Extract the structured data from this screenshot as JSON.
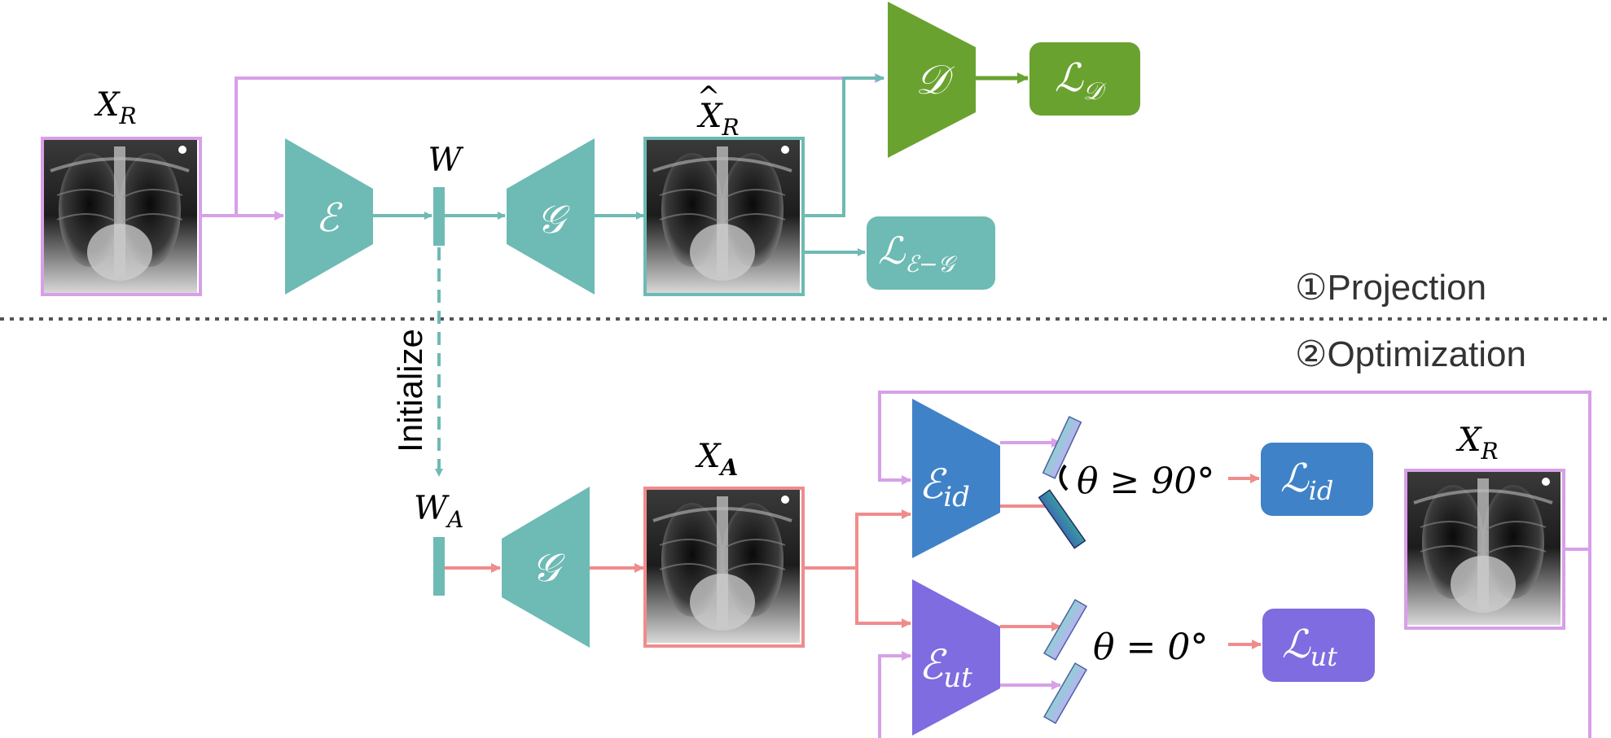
{
  "stage1": {
    "circle": "①",
    "label": "Projection"
  },
  "stage2": {
    "circle": "②",
    "label": "Optimization"
  },
  "initialize_label": "Initialize",
  "symbols": {
    "x_r_base": "X",
    "x_r_sub": "R",
    "x_r_hat_base": "X",
    "x_r_hat_sub": "R",
    "x_r_hat_accent": "^",
    "w": "W",
    "w_a_base": "W",
    "w_a_sub": "A",
    "x_a_base": "X",
    "x_a_sub": "A",
    "x_r2_base": "X",
    "x_r2_sub": "R"
  },
  "blocks": {
    "encoder": "ℰ",
    "generator_top": "𝒢",
    "generator_bottom": "𝒢",
    "discriminator": "𝒟",
    "encoder_id_base": "ℰ",
    "encoder_id_sub": "id",
    "encoder_ut_base": "ℰ",
    "encoder_ut_sub": "ut"
  },
  "losses": {
    "loss_d_base": "ℒ",
    "loss_d_sub": "𝒟",
    "loss_eg_base": "ℒ",
    "loss_eg_sub": "ℰ−𝒢",
    "loss_id_base": "ℒ",
    "loss_id_sub": "id",
    "loss_ut_base": "ℒ",
    "loss_ut_sub": "ut"
  },
  "angles": {
    "id_condition": "θ ≥ 90°",
    "ut_condition": "θ = 0°"
  },
  "colors": {
    "teal": "#6ebab4",
    "teal_dark": "#5aa9a3",
    "green": "#6aa230",
    "blue": "#3f82c8",
    "purple": "#7e6ce0",
    "pink_line": "#d7a0e8",
    "salmon": "#f08c8c",
    "dotted": "#555555"
  }
}
